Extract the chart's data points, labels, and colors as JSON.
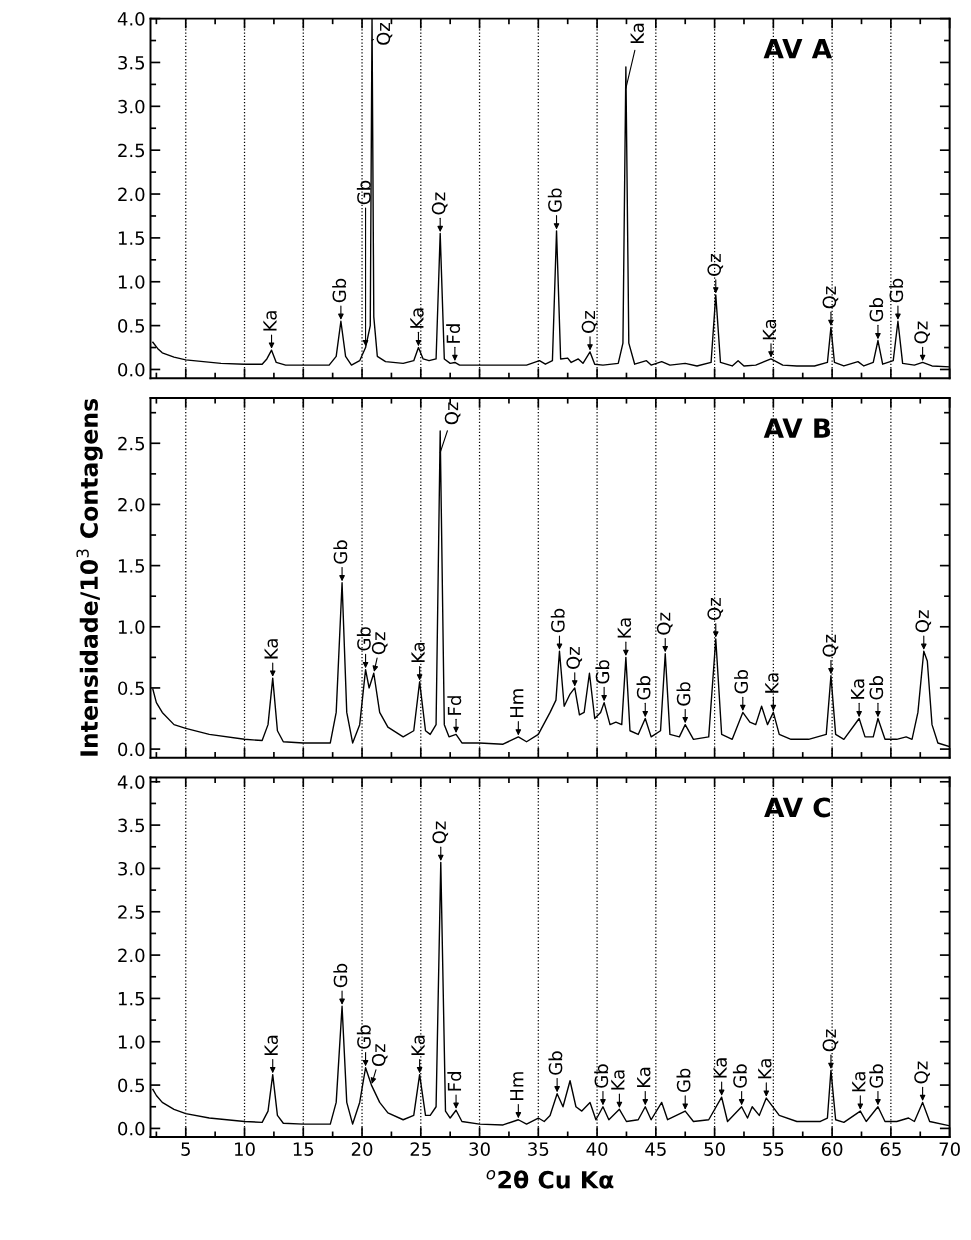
{
  "chart_data": [
    {
      "type": "line",
      "title": "AV A",
      "xlim": [
        2,
        70
      ],
      "ylim": [
        -0.1,
        4.0
      ],
      "grid": "x",
      "tick_labels": "y",
      "xticks": [
        5,
        10,
        15,
        20,
        25,
        30,
        35,
        40,
        45,
        50,
        55,
        60,
        65,
        70
      ],
      "yticks": [
        {
          "value": 0,
          "label": "0.0"
        },
        {
          "value": 0.5,
          "label": "0.5"
        },
        {
          "value": 1,
          "label": "1.0"
        },
        {
          "value": 1.5,
          "label": "1.5"
        },
        {
          "value": 2,
          "label": "2.0"
        },
        {
          "value": 2.5,
          "label": "2.5"
        },
        {
          "value": 3,
          "label": "3.0"
        },
        {
          "value": 3.5,
          "label": "3.5"
        },
        {
          "value": 4,
          "label": "4.0"
        }
      ],
      "x": [
        2.2,
        2.6,
        3,
        4,
        5,
        6.5,
        8,
        10,
        11.5,
        11.9,
        12.3,
        12.7,
        13.5,
        15,
        17.2,
        17.8,
        18.2,
        18.6,
        19.1,
        19.8,
        20.3,
        20.7,
        20.85,
        21.0,
        21.3,
        22,
        23.5,
        24.4,
        24.8,
        25.2,
        25.7,
        26.3,
        26.65,
        27.0,
        27.5,
        27.9,
        28.3,
        30,
        32,
        34,
        35.1,
        35.6,
        36.2,
        36.55,
        36.9,
        37.5,
        37.8,
        38.4,
        38.8,
        39.4,
        39.8,
        40.5,
        41.8,
        42.2,
        42.45,
        42.7,
        43.2,
        44.2,
        44.6,
        45.5,
        46.2,
        47.5,
        48.5,
        49.7,
        50.1,
        50.5,
        51.5,
        52.0,
        52.5,
        53.5,
        54.8,
        55.8,
        57,
        58.5,
        59.6,
        59.9,
        60.2,
        61,
        62.2,
        62.7,
        63.5,
        63.9,
        64.3,
        65.2,
        65.6,
        66,
        67,
        67.7,
        68.5,
        70
      ],
      "series": [
        {
          "color": "#000000",
          "values": [
            0.31,
            0.24,
            0.19,
            0.14,
            0.11,
            0.09,
            0.07,
            0.06,
            0.06,
            0.12,
            0.22,
            0.08,
            0.05,
            0.05,
            0.05,
            0.15,
            0.55,
            0.15,
            0.05,
            0.1,
            0.25,
            0.5,
            4.0,
            0.6,
            0.15,
            0.09,
            0.07,
            0.1,
            0.25,
            0.12,
            0.1,
            0.12,
            1.55,
            0.12,
            0.07,
            0.08,
            0.05,
            0.05,
            0.05,
            0.05,
            0.1,
            0.06,
            0.1,
            1.58,
            0.12,
            0.13,
            0.08,
            0.12,
            0.07,
            0.2,
            0.06,
            0.05,
            0.07,
            0.3,
            3.45,
            0.3,
            0.06,
            0.1,
            0.05,
            0.09,
            0.05,
            0.07,
            0.04,
            0.08,
            0.85,
            0.08,
            0.04,
            0.1,
            0.04,
            0.05,
            0.12,
            0.05,
            0.04,
            0.04,
            0.08,
            0.48,
            0.08,
            0.04,
            0.09,
            0.04,
            0.08,
            0.33,
            0.06,
            0.1,
            0.55,
            0.07,
            0.05,
            0.08,
            0.04,
            0.03
          ]
        }
      ],
      "annotations": [
        {
          "text": "Ka",
          "x": 12.3,
          "y": 0.22
        },
        {
          "text": "Gb",
          "x": 18.2,
          "y": 0.55
        },
        {
          "text": "Gb",
          "x": 20.3,
          "y": 0.25
        },
        {
          "text": "Qz",
          "x": 20.85,
          "y": 4.0
        },
        {
          "text": "Ka",
          "x": 24.8,
          "y": 0.25
        },
        {
          "text": "Qz",
          "x": 26.65,
          "y": 1.55
        },
        {
          "text": "Fd",
          "x": 27.9,
          "y": 0.08
        },
        {
          "text": "Gb",
          "x": 36.55,
          "y": 1.58
        },
        {
          "text": "Qz",
          "x": 39.4,
          "y": 0.2
        },
        {
          "text": "Ka",
          "x": 42.45,
          "y": 3.45
        },
        {
          "text": "Qz",
          "x": 50.1,
          "y": 0.85
        },
        {
          "text": "Ka",
          "x": 54.8,
          "y": 0.12
        },
        {
          "text": "Qz",
          "x": 59.9,
          "y": 0.48
        },
        {
          "text": "Gb",
          "x": 63.9,
          "y": 0.33
        },
        {
          "text": "Gb",
          "x": 65.6,
          "y": 0.55
        },
        {
          "text": "Qz",
          "x": 67.7,
          "y": 0.08
        }
      ]
    },
    {
      "type": "line",
      "title": "AV B",
      "ylabel": "Intensidade/10$^{3}$ Contagens",
      "xlim": [
        2,
        70
      ],
      "ylim": [
        -0.07,
        2.87
      ],
      "grid": "x",
      "tick_labels": "y",
      "xticks": [
        5,
        10,
        15,
        20,
        25,
        30,
        35,
        40,
        45,
        50,
        55,
        60,
        65,
        70
      ],
      "yticks": [
        {
          "value": 0,
          "label": "0.0"
        },
        {
          "value": 0.5,
          "label": "0.5"
        },
        {
          "value": 1,
          "label": "1.0"
        },
        {
          "value": 1.5,
          "label": "1.5"
        },
        {
          "value": 2,
          "label": "2.0"
        },
        {
          "value": 2.5,
          "label": "2.5"
        }
      ],
      "x": [
        2.2,
        2.5,
        3,
        4,
        5,
        7,
        10,
        11.5,
        12.0,
        12.4,
        12.8,
        13.3,
        15,
        17.3,
        17.8,
        18.3,
        18.7,
        19.2,
        19.8,
        20.3,
        20.6,
        21.0,
        21.5,
        22.2,
        23.5,
        24.4,
        24.9,
        25.4,
        25.8,
        26.3,
        26.65,
        27.0,
        27.4,
        28.0,
        28.5,
        30,
        32,
        33.3,
        34,
        35,
        36,
        36.5,
        36.8,
        37.2,
        37.7,
        38.1,
        38.5,
        38.9,
        39.35,
        39.8,
        40.3,
        40.6,
        41.1,
        41.6,
        42.1,
        42.45,
        42.8,
        43.5,
        44.1,
        44.6,
        45.4,
        45.8,
        46.2,
        47,
        47.5,
        48.2,
        49.5,
        50.1,
        50.6,
        51.5,
        52.4,
        53,
        53.5,
        54.0,
        54.5,
        55,
        55.5,
        56.5,
        58,
        59.5,
        59.9,
        60.3,
        61,
        62.3,
        62.8,
        63.5,
        63.9,
        64.5,
        65.5,
        66.3,
        66.8,
        67.3,
        67.8,
        68.1,
        68.5,
        69,
        70
      ],
      "series": [
        {
          "color": "#000000",
          "values": [
            0.49,
            0.38,
            0.3,
            0.2,
            0.17,
            0.12,
            0.08,
            0.07,
            0.2,
            0.58,
            0.15,
            0.06,
            0.05,
            0.05,
            0.3,
            1.36,
            0.3,
            0.05,
            0.2,
            0.65,
            0.5,
            0.62,
            0.3,
            0.18,
            0.1,
            0.15,
            0.55,
            0.15,
            0.12,
            0.2,
            2.6,
            0.2,
            0.1,
            0.12,
            0.05,
            0.05,
            0.04,
            0.1,
            0.06,
            0.12,
            0.3,
            0.4,
            0.8,
            0.35,
            0.45,
            0.5,
            0.28,
            0.3,
            0.62,
            0.25,
            0.3,
            0.38,
            0.2,
            0.22,
            0.2,
            0.75,
            0.15,
            0.12,
            0.25,
            0.1,
            0.15,
            0.78,
            0.12,
            0.1,
            0.2,
            0.08,
            0.1,
            0.9,
            0.12,
            0.08,
            0.3,
            0.22,
            0.2,
            0.35,
            0.2,
            0.3,
            0.12,
            0.08,
            0.08,
            0.12,
            0.6,
            0.12,
            0.08,
            0.25,
            0.1,
            0.1,
            0.25,
            0.08,
            0.08,
            0.1,
            0.08,
            0.3,
            0.8,
            0.72,
            0.2,
            0.05,
            0.02
          ]
        }
      ],
      "annotations": [
        {
          "text": "Ka",
          "x": 12.4,
          "y": 0.58
        },
        {
          "text": "Gb",
          "x": 18.3,
          "y": 1.36
        },
        {
          "text": "Gb",
          "x": 20.3,
          "y": 0.65
        },
        {
          "text": "Qz",
          "x": 21.0,
          "y": 0.62
        },
        {
          "text": "Ka",
          "x": 24.9,
          "y": 0.55
        },
        {
          "text": "Qz",
          "x": 26.65,
          "y": 2.6
        },
        {
          "text": "Fd",
          "x": 28.0,
          "y": 0.12
        },
        {
          "text": "Hm",
          "x": 33.3,
          "y": 0.1
        },
        {
          "text": "Gb",
          "x": 36.8,
          "y": 0.8
        },
        {
          "text": "Qz",
          "x": 38.1,
          "y": 0.5
        },
        {
          "text": "Gb",
          "x": 40.6,
          "y": 0.38
        },
        {
          "text": "Ka",
          "x": 42.45,
          "y": 0.75
        },
        {
          "text": "Gb",
          "x": 44.1,
          "y": 0.25
        },
        {
          "text": "Qz",
          "x": 45.8,
          "y": 0.78
        },
        {
          "text": "Gb",
          "x": 47.5,
          "y": 0.2
        },
        {
          "text": "Qz",
          "x": 50.1,
          "y": 0.9
        },
        {
          "text": "Gb",
          "x": 52.4,
          "y": 0.3
        },
        {
          "text": "Ka",
          "x": 55.0,
          "y": 0.3
        },
        {
          "text": "Qz",
          "x": 59.9,
          "y": 0.6
        },
        {
          "text": "Ka",
          "x": 62.3,
          "y": 0.25
        },
        {
          "text": "Gb",
          "x": 63.9,
          "y": 0.25
        },
        {
          "text": "Qz",
          "x": 67.8,
          "y": 0.8
        }
      ]
    },
    {
      "type": "line",
      "title": "AV C",
      "xlabel": "$^{o}$2θ Cu Kα",
      "xlim": [
        2,
        70
      ],
      "ylim": [
        -0.1,
        4.05
      ],
      "grid": "x",
      "xticks": [
        5,
        10,
        15,
        20,
        25,
        30,
        35,
        40,
        45,
        50,
        55,
        60,
        65,
        70
      ],
      "yticks": [
        {
          "value": 0,
          "label": "0.0"
        },
        {
          "value": 0.5,
          "label": "0.5"
        },
        {
          "value": 1,
          "label": "1.0"
        },
        {
          "value": 1.5,
          "label": "1.5"
        },
        {
          "value": 2,
          "label": "2.0"
        },
        {
          "value": 2.5,
          "label": "2.5"
        },
        {
          "value": 3,
          "label": "3.0"
        },
        {
          "value": 3.5,
          "label": "3.5"
        },
        {
          "value": 4,
          "label": "4.0"
        }
      ],
      "x": [
        2.2,
        2.5,
        3,
        4,
        5,
        7,
        10,
        11.5,
        12.0,
        12.4,
        12.8,
        13.3,
        15,
        17.3,
        17.8,
        18.3,
        18.7,
        19.2,
        19.8,
        20.3,
        20.8,
        21.5,
        22.2,
        23.5,
        24.4,
        24.9,
        25.4,
        25.8,
        26.3,
        26.7,
        27.1,
        27.5,
        28.0,
        28.5,
        30,
        32,
        33.3,
        34,
        35,
        35.5,
        36,
        36.6,
        37.1,
        37.7,
        38.2,
        38.7,
        39.4,
        39.9,
        40.5,
        41,
        41.9,
        42.5,
        43.5,
        44.1,
        44.6,
        45.5,
        46.0,
        47.5,
        48.2,
        49.5,
        50.6,
        51.1,
        52.3,
        52.8,
        53.2,
        53.8,
        54.4,
        55.5,
        57,
        59,
        59.6,
        59.9,
        60.3,
        61,
        62.4,
        62.9,
        63.9,
        64.5,
        65.5,
        66.5,
        67,
        67.7,
        68.3,
        70
      ],
      "series": [
        {
          "color": "#000000",
          "values": [
            0.45,
            0.38,
            0.3,
            0.22,
            0.17,
            0.12,
            0.08,
            0.07,
            0.2,
            0.62,
            0.15,
            0.06,
            0.05,
            0.05,
            0.3,
            1.41,
            0.3,
            0.05,
            0.3,
            0.7,
            0.5,
            0.3,
            0.18,
            0.1,
            0.15,
            0.62,
            0.15,
            0.15,
            0.25,
            3.07,
            0.2,
            0.12,
            0.21,
            0.08,
            0.05,
            0.04,
            0.1,
            0.05,
            0.12,
            0.08,
            0.15,
            0.4,
            0.25,
            0.55,
            0.25,
            0.2,
            0.3,
            0.1,
            0.25,
            0.1,
            0.22,
            0.08,
            0.1,
            0.25,
            0.1,
            0.3,
            0.1,
            0.2,
            0.08,
            0.1,
            0.36,
            0.08,
            0.25,
            0.12,
            0.25,
            0.15,
            0.35,
            0.15,
            0.08,
            0.08,
            0.12,
            0.67,
            0.1,
            0.07,
            0.2,
            0.08,
            0.25,
            0.08,
            0.08,
            0.12,
            0.08,
            0.3,
            0.08,
            0.03
          ]
        }
      ],
      "annotations": [
        {
          "text": "Ka",
          "x": 12.4,
          "y": 0.62
        },
        {
          "text": "Gb",
          "x": 18.3,
          "y": 1.41
        },
        {
          "text": "Gb",
          "x": 20.3,
          "y": 0.7
        },
        {
          "text": "Qz",
          "x": 20.8,
          "y": 0.5
        },
        {
          "text": "Ka",
          "x": 24.9,
          "y": 0.62
        },
        {
          "text": "Qz",
          "x": 26.7,
          "y": 3.07
        },
        {
          "text": "Fd",
          "x": 28.0,
          "y": 0.21
        },
        {
          "text": "Hm",
          "x": 33.3,
          "y": 0.1
        },
        {
          "text": "Gb",
          "x": 36.6,
          "y": 0.4
        },
        {
          "text": "Gb",
          "x": 40.5,
          "y": 0.25
        },
        {
          "text": "Ka",
          "x": 41.9,
          "y": 0.22
        },
        {
          "text": "Ka",
          "x": 44.1,
          "y": 0.25
        },
        {
          "text": "Gb",
          "x": 47.5,
          "y": 0.2
        },
        {
          "text": "Ka",
          "x": 50.6,
          "y": 0.36
        },
        {
          "text": "Gb",
          "x": 52.3,
          "y": 0.25
        },
        {
          "text": "Ka",
          "x": 54.4,
          "y": 0.35
        },
        {
          "text": "Qz",
          "x": 59.9,
          "y": 0.67
        },
        {
          "text": "Ka",
          "x": 62.4,
          "y": 0.2
        },
        {
          "text": "Gb",
          "x": 63.9,
          "y": 0.25
        },
        {
          "text": "Qz",
          "x": 67.7,
          "y": 0.3
        }
      ]
    }
  ]
}
